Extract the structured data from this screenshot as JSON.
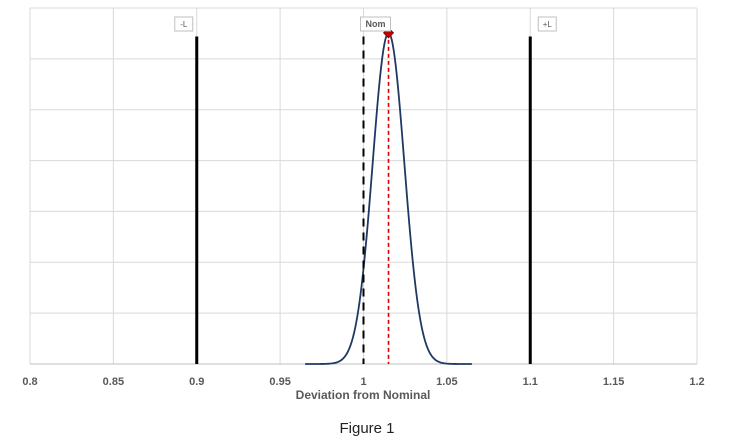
{
  "chart_data": {
    "type": "line",
    "xlabel": "Deviation from Nominal",
    "ylabel": "",
    "xlim": [
      0.8,
      1.2
    ],
    "ylim": [
      0,
      1
    ],
    "x_ticks": [
      0.8,
      0.85,
      0.9,
      0.95,
      1,
      1.05,
      1.1,
      1.15,
      1.2
    ],
    "x_tick_labels": [
      "0.8",
      "0.85",
      "0.9",
      "0.95",
      "1",
      "1.05",
      "1.1",
      "1.15",
      "1.2"
    ],
    "y_tick_labels_shown": false,
    "grid": true,
    "series": [
      {
        "kind": "normal-curve",
        "color": "#1f3864",
        "mean": 1.015,
        "sd": 0.0095,
        "peak": 0.93,
        "x_range": [
          0.965,
          1.065
        ]
      }
    ],
    "reference_lines": [
      {
        "x": 0.9,
        "label": "-L",
        "color": "#000000",
        "style": "solid"
      },
      {
        "x": 1.0,
        "label": "Nom",
        "color": "#000000",
        "style": "dashed"
      },
      {
        "x": 1.1,
        "label": "+L",
        "color": "#000000",
        "style": "solid"
      },
      {
        "x": 1.015,
        "label": "",
        "color": "#e00000",
        "style": "dotted"
      }
    ],
    "peak_marker": {
      "x": 1.015,
      "y": 0.93,
      "color": "#c00000"
    }
  },
  "caption": "Figure 1"
}
